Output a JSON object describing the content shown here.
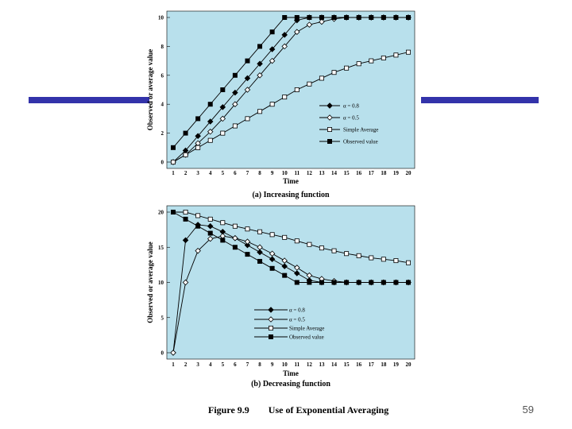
{
  "slide": {
    "number": "59"
  },
  "figure": {
    "label": "Figure 9.9",
    "title": "Use of Exponential Averaging"
  },
  "colors": {
    "plot_bg": "#b8e0ec",
    "accent_bar": "#3333aa",
    "series": "#000000"
  },
  "chart_data": [
    {
      "type": "line",
      "caption": "(a) Increasing function",
      "xlabel": "Time",
      "ylabel": "Observed or average value",
      "x": [
        1,
        2,
        3,
        4,
        5,
        6,
        7,
        8,
        9,
        10,
        11,
        12,
        13,
        14,
        15,
        16,
        17,
        18,
        19,
        20
      ],
      "xlim": [
        1,
        20
      ],
      "ylim": [
        0,
        10
      ],
      "yticks": [
        0,
        2,
        4,
        6,
        8,
        10
      ],
      "series": [
        {
          "name": "α = 0.8",
          "marker": "filled-diamond",
          "values": [
            0,
            0.8,
            1.8,
            2.8,
            3.8,
            4.8,
            5.8,
            6.8,
            7.8,
            8.8,
            9.8,
            10,
            10,
            10,
            10,
            10,
            10,
            10,
            10,
            10
          ]
        },
        {
          "name": "α = 0.5",
          "marker": "open-diamond",
          "values": [
            0,
            0.5,
            1.3,
            2.1,
            3.0,
            4.0,
            5.0,
            6.0,
            7.0,
            8.0,
            9.0,
            9.5,
            9.7,
            9.9,
            10,
            10,
            10,
            10,
            10,
            10
          ]
        },
        {
          "name": "Simple Average",
          "marker": "open-square",
          "values": [
            0,
            0.5,
            1.0,
            1.5,
            2.0,
            2.5,
            3.0,
            3.5,
            4.0,
            4.5,
            5.0,
            5.4,
            5.8,
            6.2,
            6.5,
            6.8,
            7.0,
            7.2,
            7.4,
            7.6
          ]
        },
        {
          "name": "Observed value",
          "marker": "filled-square",
          "values": [
            1,
            2,
            3,
            4,
            5,
            6,
            7,
            8,
            9,
            10,
            10,
            10,
            10,
            10,
            10,
            10,
            10,
            10,
            10,
            10
          ]
        }
      ]
    },
    {
      "type": "line",
      "caption": "(b) Decreasing function",
      "xlabel": "Time",
      "ylabel": "Observed or average value",
      "x": [
        1,
        2,
        3,
        4,
        5,
        6,
        7,
        8,
        9,
        10,
        11,
        12,
        13,
        14,
        15,
        16,
        17,
        18,
        19,
        20
      ],
      "xlim": [
        1,
        20
      ],
      "ylim": [
        0,
        20
      ],
      "yticks": [
        0,
        5,
        10,
        15,
        20
      ],
      "series": [
        {
          "name": "α = 0.8",
          "marker": "filled-diamond",
          "values": [
            0,
            16,
            18.2,
            18.0,
            17.2,
            16.3,
            15.3,
            14.3,
            13.3,
            12.3,
            11.3,
            10.3,
            10,
            10,
            10,
            10,
            10,
            10,
            10,
            10
          ]
        },
        {
          "name": "α = 0.5",
          "marker": "open-diamond",
          "values": [
            0,
            10,
            14.5,
            16.2,
            16.6,
            16.3,
            15.8,
            15.0,
            14.1,
            13.1,
            12.1,
            11.0,
            10.5,
            10.2,
            10,
            10,
            10,
            10,
            10,
            10
          ]
        },
        {
          "name": "Simple Average",
          "marker": "open-square",
          "values": [
            20,
            20,
            19.5,
            19.0,
            18.5,
            18.0,
            17.6,
            17.2,
            16.8,
            16.4,
            15.9,
            15.4,
            14.9,
            14.5,
            14.1,
            13.8,
            13.5,
            13.3,
            13.1,
            12.8
          ]
        },
        {
          "name": "Observed value",
          "marker": "filled-square",
          "values": [
            20,
            19,
            18,
            17,
            16,
            15,
            14,
            13,
            12,
            11,
            10,
            10,
            10,
            10,
            10,
            10,
            10,
            10,
            10,
            10
          ]
        }
      ]
    }
  ]
}
